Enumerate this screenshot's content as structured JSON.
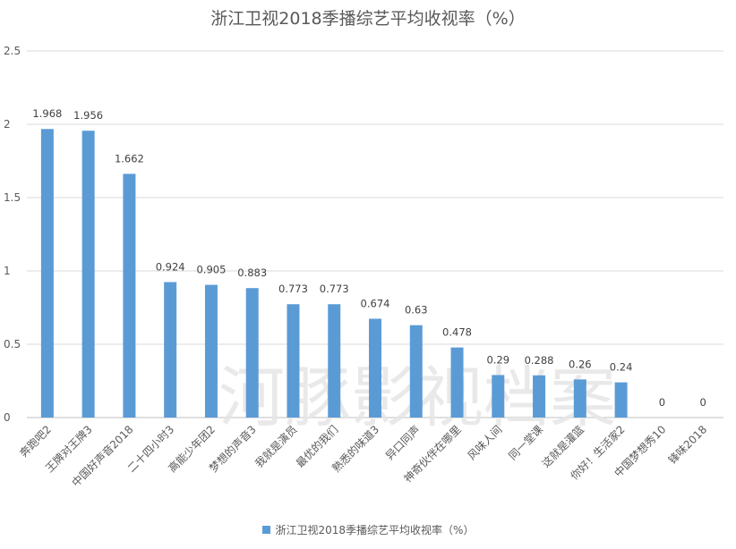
{
  "chart_data": {
    "type": "bar",
    "title": "浙江卫视2018季播综艺平均收视率（%）",
    "categories": [
      "奔跑吧2",
      "王牌对王牌3",
      "中国好声音2018",
      "二十四小时3",
      "高能少年团2",
      "梦想的声音3",
      "我就是演员",
      "最优的我们",
      "熟悉的味道3",
      "异口同声",
      "神奇伙伴在哪里",
      "风味人间",
      "同一堂课",
      "这就是灌篮",
      "你好！生活家2",
      "中国梦想秀10",
      "锋味2018"
    ],
    "series": [
      {
        "name": "浙江卫视2018季播综艺平均收视率（%）",
        "values": [
          1.968,
          1.956,
          1.662,
          0.924,
          0.905,
          0.883,
          0.773,
          0.773,
          0.674,
          0.63,
          0.478,
          0.29,
          0.288,
          0.26,
          0.24,
          0,
          0
        ],
        "labels": [
          "1.968",
          "1.956",
          "1.662",
          "0.924",
          "0.905",
          "0.883",
          "0.773",
          "0.773",
          "0.674",
          "0.63",
          "0.478",
          "0.29",
          "0.288",
          "0.26",
          "0.24",
          "0",
          "0"
        ],
        "color": "#5B9BD5"
      }
    ],
    "yticks": [
      "0",
      "0.5",
      "1",
      "1.5",
      "2",
      "2.5"
    ],
    "ylim": [
      0,
      2.5
    ],
    "grid": true,
    "legend_position": "bottom"
  },
  "watermark": "河豚影视档案"
}
